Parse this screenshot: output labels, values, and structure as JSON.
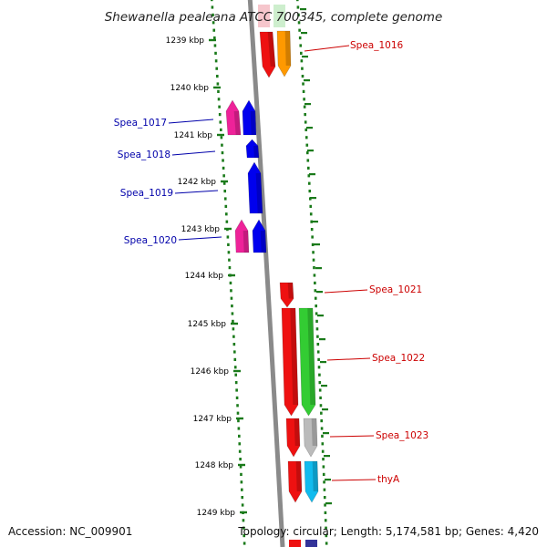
{
  "title": "Shewanella pealeana ATCC 700345, complete genome",
  "footer": {
    "accession": "Accession: NC_009901",
    "summary": "Topology: circular; Length: 5,174,581 bp; Genes: 4,420"
  },
  "ruler": {
    "unit": "kbp",
    "ticks": [
      "1239 kbp",
      "1240 kbp",
      "1241 kbp",
      "1242 kbp",
      "1243 kbp",
      "1244 kbp",
      "1245 kbp",
      "1246 kbp",
      "1247 kbp",
      "1248 kbp",
      "1249 kbp"
    ]
  },
  "colors": {
    "plus_strand_label": "#cc0000",
    "minus_strand_label": "#0000aa",
    "backbone": "#8a8a8a",
    "tick_dots": "#1a7a1a",
    "red": "#ee1111",
    "orange": "#ff9900",
    "green": "#33cc33",
    "grey": "#bbbbbb",
    "cyan": "#11bbee",
    "blue": "#0000ee",
    "magenta": "#ee2299"
  },
  "genes": [
    {
      "label": "Spea_1016",
      "strand": "plus"
    },
    {
      "label": "Spea_1017",
      "strand": "minus"
    },
    {
      "label": "Spea_1018",
      "strand": "minus"
    },
    {
      "label": "Spea_1019",
      "strand": "minus"
    },
    {
      "label": "Spea_1020",
      "strand": "minus"
    },
    {
      "label": "Spea_1021",
      "strand": "plus"
    },
    {
      "label": "Spea_1022",
      "strand": "plus"
    },
    {
      "label": "Spea_1023",
      "strand": "plus"
    },
    {
      "label": "thyA",
      "strand": "plus"
    }
  ]
}
